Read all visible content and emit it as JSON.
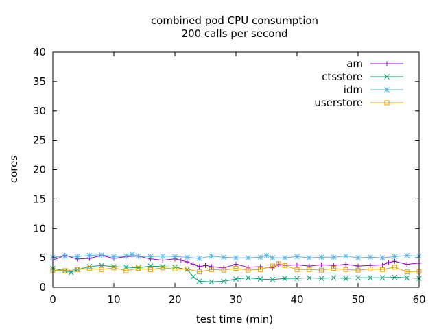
{
  "chart_data": {
    "type": "line",
    "title": "combined pod CPU consumption",
    "subtitle": "200 calls per second",
    "xlabel": "test time (min)",
    "ylabel": "cores",
    "xlim": [
      0,
      60
    ],
    "ylim": [
      0,
      40
    ],
    "xticks": [
      0,
      10,
      20,
      30,
      40,
      50,
      60
    ],
    "yticks": [
      0,
      5,
      10,
      15,
      20,
      25,
      30,
      35,
      40
    ],
    "legend_position": "top-right",
    "series": [
      {
        "name": "am",
        "color": "#9400d3",
        "marker": "plus",
        "x": [
          0,
          2,
          4,
          6,
          8,
          10,
          12,
          14,
          16,
          18,
          20,
          21,
          22,
          23,
          24,
          25,
          26,
          28,
          30,
          32,
          34,
          36,
          37,
          38,
          40,
          42,
          44,
          46,
          48,
          50,
          52,
          54,
          55,
          56,
          58,
          60
        ],
        "y": [
          4.6,
          5.4,
          4.8,
          4.9,
          5.4,
          4.9,
          5.2,
          5.3,
          4.8,
          4.6,
          4.8,
          4.6,
          4.3,
          3.9,
          3.5,
          3.7,
          3.5,
          3.3,
          3.9,
          3.4,
          3.5,
          3.3,
          3.9,
          3.7,
          3.8,
          3.6,
          3.8,
          3.7,
          3.9,
          3.6,
          3.7,
          3.8,
          4.2,
          4.4,
          3.9,
          4.1
        ]
      },
      {
        "name": "ctsstore",
        "color": "#009e73",
        "marker": "x",
        "x": [
          0,
          2,
          3,
          4,
          6,
          8,
          10,
          12,
          14,
          16,
          18,
          20,
          22,
          23,
          24,
          26,
          28,
          30,
          32,
          34,
          36,
          38,
          40,
          42,
          44,
          46,
          48,
          50,
          52,
          54,
          56,
          58,
          60
        ],
        "y": [
          3.2,
          2.8,
          2.5,
          3.0,
          3.5,
          3.7,
          3.5,
          3.4,
          3.3,
          3.6,
          3.5,
          3.4,
          3.0,
          1.8,
          1.0,
          0.9,
          1.0,
          1.4,
          1.6,
          1.4,
          1.3,
          1.5,
          1.5,
          1.6,
          1.5,
          1.6,
          1.5,
          1.6,
          1.6,
          1.6,
          1.7,
          1.6,
          1.5
        ]
      },
      {
        "name": "idm",
        "color": "#56b4e9",
        "marker": "star",
        "x": [
          0,
          2,
          4,
          6,
          8,
          10,
          12,
          13,
          14,
          16,
          18,
          20,
          22,
          24,
          26,
          28,
          30,
          32,
          34,
          35,
          36,
          38,
          40,
          42,
          44,
          46,
          48,
          50,
          52,
          54,
          56,
          58,
          60
        ],
        "y": [
          5.1,
          5.3,
          5.2,
          5.4,
          5.5,
          5.2,
          5.3,
          5.6,
          5.3,
          5.2,
          5.3,
          5.2,
          5.1,
          4.9,
          5.3,
          5.1,
          5.0,
          5.0,
          5.1,
          5.4,
          5.0,
          5.0,
          5.2,
          5.0,
          5.1,
          5.1,
          5.3,
          5.0,
          5.1,
          5.0,
          5.2,
          5.4,
          5.3
        ]
      },
      {
        "name": "userstore",
        "color": "#e69f00",
        "marker": "square",
        "x": [
          0,
          2,
          4,
          6,
          8,
          10,
          12,
          14,
          16,
          18,
          20,
          22,
          24,
          26,
          28,
          30,
          32,
          34,
          36,
          37,
          38,
          40,
          42,
          44,
          46,
          48,
          50,
          52,
          54,
          56,
          58,
          60
        ],
        "y": [
          2.9,
          2.8,
          3.0,
          3.2,
          3.0,
          3.3,
          2.8,
          3.2,
          3.0,
          3.3,
          3.1,
          3.1,
          2.6,
          3.0,
          2.9,
          3.2,
          2.9,
          3.0,
          3.6,
          4.0,
          3.7,
          3.0,
          3.0,
          2.9,
          3.2,
          3.0,
          2.9,
          3.1,
          3.0,
          3.4,
          2.6,
          2.7
        ]
      }
    ]
  }
}
